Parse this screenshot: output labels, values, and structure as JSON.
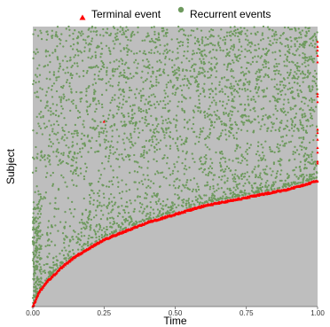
{
  "chart_data": {
    "type": "scatter",
    "title": "",
    "xlabel": "Time",
    "ylabel": "Subject",
    "xlim": [
      0,
      1
    ],
    "x_ticks": [
      "0.00",
      "0.25",
      "0.50",
      "0.75",
      "1.00"
    ],
    "y_ticks": [],
    "legend_position": "top",
    "grid": false,
    "background_color": "#bebebe",
    "series": [
      {
        "name": "Terminal event",
        "marker": "triangle",
        "color": "#ff0000",
        "curve": [
          [
            0.0,
            0.0
          ],
          [
            0.02,
            0.05
          ],
          [
            0.05,
            0.09
          ],
          [
            0.1,
            0.14
          ],
          [
            0.15,
            0.18
          ],
          [
            0.2,
            0.21
          ],
          [
            0.25,
            0.24
          ],
          [
            0.3,
            0.26
          ],
          [
            0.35,
            0.28
          ],
          [
            0.4,
            0.3
          ],
          [
            0.5,
            0.33
          ],
          [
            0.6,
            0.36
          ],
          [
            0.7,
            0.38
          ],
          [
            0.8,
            0.4
          ],
          [
            0.9,
            0.42
          ],
          [
            1.0,
            0.45
          ]
        ]
      },
      {
        "name": "Recurrent events",
        "marker": "circle",
        "color": "#6e9a5e"
      }
    ]
  }
}
